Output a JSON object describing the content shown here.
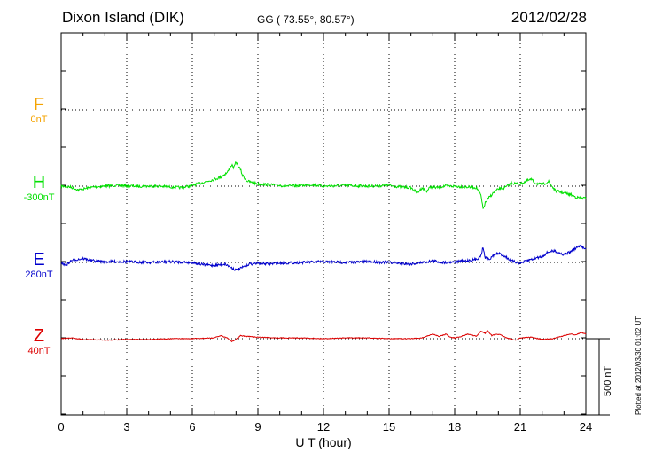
{
  "header": {
    "station": "Dixon Island (DIK)",
    "coords": "GG ( 73.55°,  80.57°)",
    "date": "2012/02/28"
  },
  "credit": "Plotted at 2012/03/30 01:02 UT",
  "scale_bar": {
    "label": "500 nT",
    "value_nT": 500
  },
  "colors": {
    "F": "#f5a300",
    "H": "#00e000",
    "E": "#0000cc",
    "Z": "#dd0000",
    "axis": "#000000"
  },
  "components": [
    {
      "id": "F",
      "label": "F",
      "baseline": "0nT"
    },
    {
      "id": "H",
      "label": "H",
      "baseline": "-300nT"
    },
    {
      "id": "E",
      "label": "E",
      "baseline": "280nT"
    },
    {
      "id": "Z",
      "label": "Z",
      "baseline": "40nT"
    }
  ],
  "chart_data": {
    "type": "line",
    "title": "Dixon Island (DIK)",
    "xlabel": "U T (hour)",
    "ylabel": "",
    "xlim": [
      0,
      24
    ],
    "xticks": [
      0,
      3,
      6,
      9,
      12,
      15,
      18,
      21,
      24
    ],
    "xtick_labels": [
      "0",
      "3",
      "6",
      "9",
      "12",
      "15",
      "18",
      "21",
      "24"
    ],
    "grid": true,
    "offset_panels_nT_per_panel": 500,
    "series": [
      {
        "name": "F",
        "baseline_nT": 0,
        "x": [],
        "y": []
      },
      {
        "name": "H",
        "baseline_nT": -300,
        "x": [
          0,
          0.4,
          0.8,
          1.5,
          2.5,
          3.5,
          4.5,
          5.5,
          6.0,
          6.5,
          7.0,
          7.3,
          7.6,
          7.8,
          7.9,
          8.0,
          8.1,
          8.2,
          8.3,
          8.5,
          8.7,
          9.0,
          9.5,
          10.0,
          10.5,
          11.0,
          11.5,
          12.0,
          13.0,
          14.0,
          15.0,
          15.5,
          16.0,
          16.3,
          16.5,
          16.7,
          16.9,
          17.2,
          17.5,
          18.0,
          18.5,
          19.0,
          19.2,
          19.3,
          19.4,
          19.6,
          19.8,
          20.0,
          20.3,
          20.6,
          21.0,
          21.3,
          21.5,
          21.7,
          22.0,
          22.3,
          22.6,
          23.0,
          23.3,
          23.6,
          24.0
        ],
        "y": [
          0,
          -5,
          -25,
          -5,
          5,
          0,
          0,
          -10,
          5,
          25,
          45,
          60,
          90,
          140,
          120,
          160,
          130,
          110,
          70,
          35,
          25,
          15,
          10,
          5,
          0,
          5,
          10,
          0,
          5,
          0,
          5,
          -5,
          -10,
          -45,
          -10,
          -35,
          -5,
          -10,
          0,
          0,
          -5,
          -10,
          -60,
          -150,
          -110,
          -70,
          -40,
          -20,
          -10,
          20,
          15,
          35,
          45,
          20,
          10,
          30,
          -30,
          -45,
          -55,
          -75,
          -80
        ]
      },
      {
        "name": "E",
        "baseline_nT": 280,
        "x": [
          0,
          0.2,
          0.5,
          1.0,
          1.5,
          2.0,
          3.0,
          4.0,
          5.0,
          6.0,
          6.5,
          7.0,
          7.5,
          7.8,
          8.0,
          8.2,
          8.4,
          8.6,
          9.0,
          9.5,
          10.0,
          11.0,
          12.0,
          13.0,
          14.0,
          15.0,
          16.0,
          16.5,
          17.0,
          17.5,
          18.0,
          18.5,
          19.0,
          19.2,
          19.3,
          19.4,
          19.6,
          19.8,
          20.0,
          20.3,
          20.6,
          21.0,
          21.5,
          22.0,
          22.3,
          22.6,
          23.0,
          23.3,
          23.5,
          23.7,
          24.0
        ],
        "y": [
          0,
          -20,
          15,
          25,
          10,
          5,
          5,
          0,
          5,
          0,
          -15,
          -20,
          -10,
          -35,
          -50,
          -40,
          -25,
          -10,
          -5,
          -10,
          -5,
          0,
          5,
          0,
          5,
          0,
          -10,
          0,
          10,
          0,
          5,
          10,
          20,
          45,
          100,
          30,
          20,
          50,
          60,
          40,
          10,
          -5,
          20,
          40,
          70,
          75,
          50,
          70,
          90,
          105,
          95
        ]
      },
      {
        "name": "Z",
        "baseline_nT": 40,
        "x": [
          0,
          0.5,
          1.0,
          2.0,
          3.0,
          4.0,
          5.0,
          6.0,
          7.0,
          7.3,
          7.6,
          7.8,
          8.0,
          8.2,
          8.5,
          9.0,
          10.0,
          11.0,
          12.0,
          13.0,
          14.0,
          15.0,
          16.0,
          16.5,
          17.0,
          17.3,
          17.6,
          17.8,
          18.0,
          18.3,
          18.6,
          19.0,
          19.2,
          19.4,
          19.5,
          19.7,
          19.9,
          20.1,
          20.3,
          20.5,
          20.8,
          21.0,
          21.5,
          22.0,
          22.5,
          23.0,
          23.3,
          23.5,
          23.8,
          24.0
        ],
        "y": [
          0,
          5,
          -5,
          -10,
          -5,
          -5,
          0,
          0,
          5,
          20,
          5,
          -20,
          -5,
          20,
          15,
          10,
          5,
          5,
          0,
          5,
          5,
          0,
          0,
          5,
          30,
          15,
          30,
          10,
          5,
          15,
          30,
          15,
          50,
          35,
          55,
          20,
          30,
          25,
          10,
          0,
          -10,
          5,
          10,
          -5,
          0,
          20,
          30,
          25,
          40,
          30
        ]
      }
    ]
  }
}
